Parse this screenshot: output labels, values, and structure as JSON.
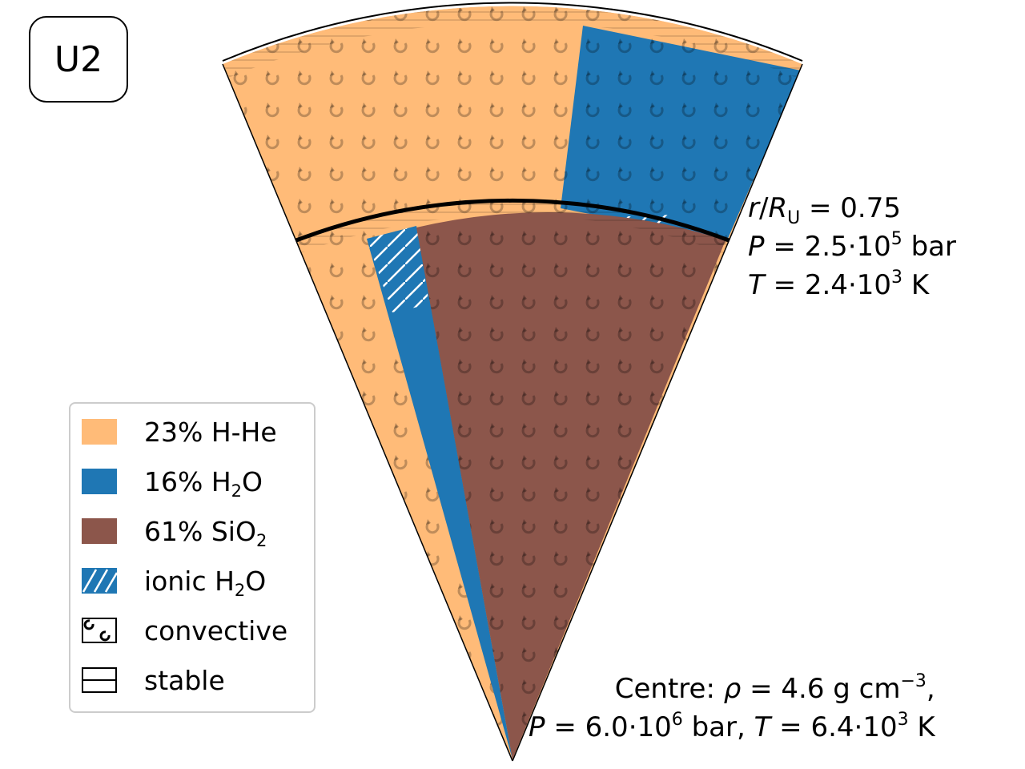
{
  "panel_tag": "U2",
  "colors": {
    "h_he": "#ffbb78",
    "h2o": "#1f77b4",
    "sio2": "#8c564b",
    "outline": "#000000"
  },
  "legend": {
    "h_he": "23% H-He",
    "h2o_pre": "16% H",
    "h2o_sub": "2",
    "h2o_post": "O",
    "sio2_pre": "61% SiO",
    "sio2_sub": "2",
    "ionic_pre": "ionic H",
    "ionic_sub": "2",
    "ionic_post": "O",
    "convective": "convective",
    "stable": "stable"
  },
  "boundary": {
    "r_var": "r",
    "r_sep": "/",
    "r_R": "R",
    "r_sub": "U",
    "r_value": " = 0.75",
    "p_var": "P",
    "p_value": " = 2.5·10",
    "p_exp": "5",
    "p_unit": " bar",
    "t_var": "T",
    "t_value": " = 2.4·10",
    "t_exp": "3",
    "t_unit": " K"
  },
  "centre": {
    "prefix": "Centre: ",
    "rho_var": "ρ",
    "rho_value": " = 4.6 g cm",
    "rho_exp": "−3",
    "rho_post": ",",
    "p_var": "P",
    "p_value": " = 6.0·10",
    "p_exp": "6",
    "p_unit": " bar, ",
    "t_var": "T",
    "t_value": " = 6.4·10",
    "t_exp": "3",
    "t_unit": " K"
  }
}
